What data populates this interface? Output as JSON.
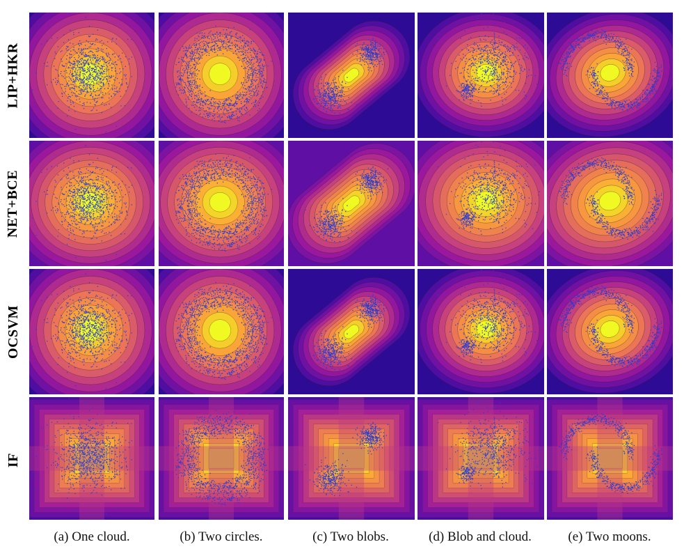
{
  "figure": {
    "rows": [
      {
        "label": "LIP+HKR"
      },
      {
        "label": "NET+BCE"
      },
      {
        "label": "OCSVM"
      },
      {
        "label": "IF"
      }
    ],
    "columns": [
      {
        "caption": "(a) One cloud.",
        "dataset": "one-cloud"
      },
      {
        "caption": "(b) Two circles.",
        "dataset": "two-circles"
      },
      {
        "caption": "(c) Two blobs.",
        "dataset": "two-blobs"
      },
      {
        "caption": "(d) Blob and cloud.",
        "dataset": "blob-and-cloud"
      },
      {
        "caption": "(e) Two moons.",
        "dataset": "two-moons"
      }
    ],
    "colors": {
      "colormap": [
        "#1a0a8c",
        "#5b0ea6",
        "#9c179e",
        "#cc4778",
        "#ed7953",
        "#fca636",
        "#f0f921"
      ],
      "points": "#2a3bd6"
    }
  }
}
